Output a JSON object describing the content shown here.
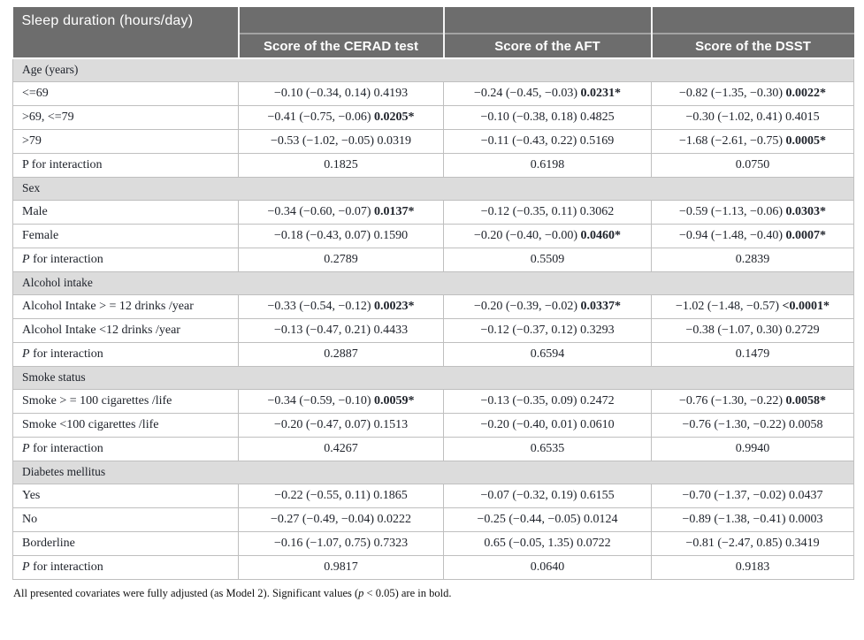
{
  "colors": {
    "header_bg": "#6d6d6d",
    "header_text": "#ffffff",
    "section_bg": "#dcdcdc",
    "border": "#bfbfbf",
    "text": "#20242c"
  },
  "table": {
    "corner_label": "Sleep duration (hours/day)",
    "columns": [
      "Score of the CERAD test",
      "Score of the AFT",
      "Score of the DSST"
    ],
    "sections": [
      {
        "title": "Age (years)",
        "rows": [
          {
            "label": "<=69",
            "italic_p": false,
            "cells": [
              {
                "est": "−0.10 (−0.34, 0.14)",
                "p": "0.4193",
                "sig": false
              },
              {
                "est": "−0.24 (−0.45, −0.03)",
                "p": "0.0231*",
                "sig": true
              },
              {
                "est": "−0.82 (−1.35, −0.30)",
                "p": "0.0022*",
                "sig": true
              }
            ]
          },
          {
            "label": ">69, <=79",
            "italic_p": false,
            "cells": [
              {
                "est": "−0.41 (−0.75, −0.06)",
                "p": "0.0205*",
                "sig": true
              },
              {
                "est": "−0.10 (−0.38, 0.18)",
                "p": "0.4825",
                "sig": false
              },
              {
                "est": "−0.30 (−1.02, 0.41)",
                "p": "0.4015",
                "sig": false
              }
            ]
          },
          {
            "label": ">79",
            "italic_p": false,
            "cells": [
              {
                "est": "−0.53 (−1.02, −0.05)",
                "p": "0.0319",
                "sig": false
              },
              {
                "est": "−0.11 (−0.43, 0.22)",
                "p": "0.5169",
                "sig": false
              },
              {
                "est": "−1.68 (−2.61, −0.75)",
                "p": "0.0005*",
                "sig": true
              }
            ]
          },
          {
            "label": "P for interaction",
            "italic_p": false,
            "cells": [
              {
                "est": null,
                "p": "0.1825",
                "sig": false
              },
              {
                "est": null,
                "p": "0.6198",
                "sig": false
              },
              {
                "est": null,
                "p": "0.0750",
                "sig": false
              }
            ]
          }
        ]
      },
      {
        "title": "Sex",
        "rows": [
          {
            "label": "Male",
            "italic_p": false,
            "cells": [
              {
                "est": "−0.34 (−0.60, −0.07)",
                "p": "0.0137*",
                "sig": true
              },
              {
                "est": "−0.12 (−0.35, 0.11)",
                "p": "0.3062",
                "sig": false
              },
              {
                "est": "−0.59 (−1.13, −0.06)",
                "p": "0.0303*",
                "sig": true
              }
            ]
          },
          {
            "label": "Female",
            "italic_p": false,
            "cells": [
              {
                "est": "−0.18 (−0.43, 0.07)",
                "p": "0.1590",
                "sig": false
              },
              {
                "est": "−0.20 (−0.40, −0.00)",
                "p": "0.0460*",
                "sig": true
              },
              {
                "est": "−0.94 (−1.48, −0.40)",
                "p": "0.0007*",
                "sig": true
              }
            ]
          },
          {
            "label": "P for interaction",
            "italic_p": true,
            "cells": [
              {
                "est": null,
                "p": "0.2789",
                "sig": false
              },
              {
                "est": null,
                "p": "0.5509",
                "sig": false
              },
              {
                "est": null,
                "p": "0.2839",
                "sig": false
              }
            ]
          }
        ]
      },
      {
        "title": "Alcohol intake",
        "rows": [
          {
            "label": "Alcohol Intake > = 12 drinks /year",
            "italic_p": false,
            "cells": [
              {
                "est": "−0.33 (−0.54, −0.12)",
                "p": "0.0023*",
                "sig": true
              },
              {
                "est": "−0.20 (−0.39, −0.02)",
                "p": "0.0337*",
                "sig": true
              },
              {
                "est": "−1.02 (−1.48, −0.57)",
                "p": "<0.0001*",
                "sig": true
              }
            ]
          },
          {
            "label": "Alcohol Intake <12 drinks /year",
            "italic_p": false,
            "cells": [
              {
                "est": "−0.13 (−0.47, 0.21)",
                "p": "0.4433",
                "sig": false
              },
              {
                "est": "−0.12 (−0.37, 0.12)",
                "p": "0.3293",
                "sig": false
              },
              {
                "est": "−0.38 (−1.07, 0.30)",
                "p": "0.2729",
                "sig": false
              }
            ]
          },
          {
            "label": "P for interaction",
            "italic_p": true,
            "cells": [
              {
                "est": null,
                "p": "0.2887",
                "sig": false
              },
              {
                "est": null,
                "p": "0.6594",
                "sig": false
              },
              {
                "est": null,
                "p": "0.1479",
                "sig": false
              }
            ]
          }
        ]
      },
      {
        "title": "Smoke status",
        "rows": [
          {
            "label": "Smoke > = 100 cigarettes /life",
            "italic_p": false,
            "cells": [
              {
                "est": "−0.34 (−0.59, −0.10)",
                "p": "0.0059*",
                "sig": true
              },
              {
                "est": "−0.13 (−0.35, 0.09)",
                "p": "0.2472",
                "sig": false
              },
              {
                "est": "−0.76 (−1.30, −0.22)",
                "p": "0.0058*",
                "sig": true
              }
            ]
          },
          {
            "label": "Smoke <100 cigarettes /life",
            "italic_p": false,
            "cells": [
              {
                "est": "−0.20 (−0.47, 0.07)",
                "p": "0.1513",
                "sig": false
              },
              {
                "est": "−0.20 (−0.40, 0.01)",
                "p": "0.0610",
                "sig": false
              },
              {
                "est": "−0.76 (−1.30, −0.22)",
                "p": "0.0058",
                "sig": false
              }
            ]
          },
          {
            "label": "P for interaction",
            "italic_p": true,
            "cells": [
              {
                "est": null,
                "p": "0.4267",
                "sig": false
              },
              {
                "est": null,
                "p": "0.6535",
                "sig": false
              },
              {
                "est": null,
                "p": "0.9940",
                "sig": false
              }
            ]
          }
        ]
      },
      {
        "title": "Diabetes mellitus",
        "rows": [
          {
            "label": "Yes",
            "italic_p": false,
            "cells": [
              {
                "est": "−0.22 (−0.55, 0.11)",
                "p": "0.1865",
                "sig": false
              },
              {
                "est": "−0.07 (−0.32, 0.19)",
                "p": "0.6155",
                "sig": false
              },
              {
                "est": "−0.70 (−1.37, −0.02)",
                "p": "0.0437",
                "sig": false
              }
            ]
          },
          {
            "label": "No",
            "italic_p": false,
            "cells": [
              {
                "est": "−0.27 (−0.49, −0.04)",
                "p": "0.0222",
                "sig": false
              },
              {
                "est": "−0.25 (−0.44, −0.05)",
                "p": "0.0124",
                "sig": false
              },
              {
                "est": "−0.89 (−1.38, −0.41)",
                "p": "0.0003",
                "sig": false
              }
            ]
          },
          {
            "label": "Borderline",
            "italic_p": false,
            "cells": [
              {
                "est": "−0.16 (−1.07, 0.75)",
                "p": "0.7323",
                "sig": false
              },
              {
                "est": "0.65 (−0.05, 1.35)",
                "p": "0.0722",
                "sig": false
              },
              {
                "est": "−0.81 (−2.47, 0.85)",
                "p": "0.3419",
                "sig": false
              }
            ]
          },
          {
            "label": "P for interaction",
            "italic_p": true,
            "cells": [
              {
                "est": null,
                "p": "0.9817",
                "sig": false
              },
              {
                "est": null,
                "p": "0.0640",
                "sig": false
              },
              {
                "est": null,
                "p": "0.9183",
                "sig": false
              }
            ]
          }
        ]
      }
    ]
  },
  "footnote": {
    "pre": "All presented covariates were fully adjusted (as Model 2). Significant values (",
    "italic": "p",
    "post": " < 0.05) are in bold."
  }
}
